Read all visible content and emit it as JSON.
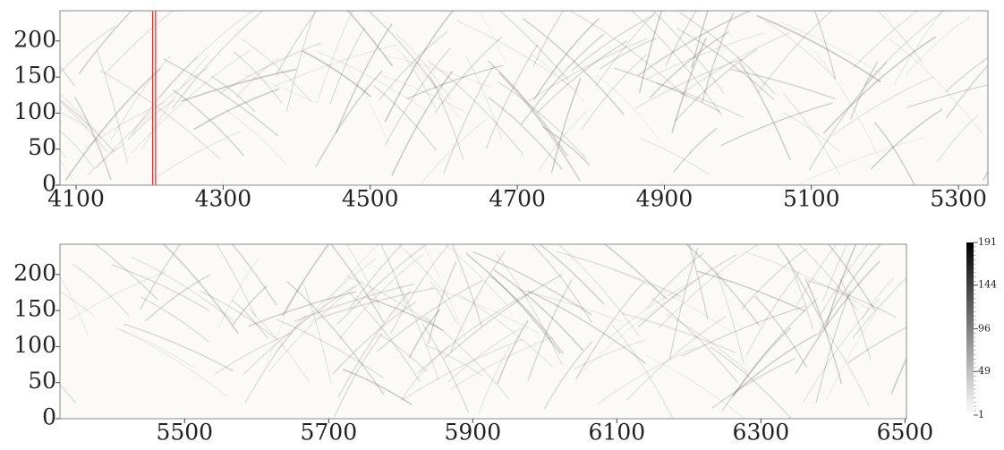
{
  "chart_data": [
    {
      "type": "heatmap",
      "xlim": [
        4078,
        5340
      ],
      "ylim": [
        0,
        242
      ],
      "xticks": [
        4100,
        4300,
        4500,
        4700,
        4900,
        5100,
        5300
      ],
      "yticks": [
        0,
        50,
        100,
        150,
        200
      ],
      "vlines": [
        4204,
        4208
      ],
      "vline_color": "#e03030"
    },
    {
      "type": "heatmap",
      "xlim": [
        5327,
        6502
      ],
      "ylim": [
        0,
        242
      ],
      "xticks": [
        5500,
        5700,
        5900,
        6100,
        6300,
        6500
      ],
      "yticks": [
        0,
        50,
        100,
        150,
        200
      ],
      "colorbar": {
        "lim": [
          1,
          191
        ],
        "ticks": [
          1,
          49,
          96,
          144,
          191
        ]
      }
    }
  ]
}
